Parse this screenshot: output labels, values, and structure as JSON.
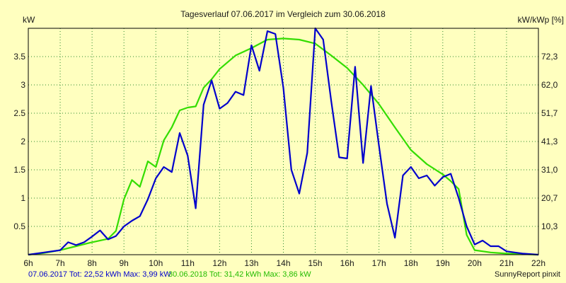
{
  "chart_data": {
    "type": "line",
    "title": "Tagesverlauf 07.06.2017 im Vergleich zum 30.06.2018",
    "ylabel_left": "kW",
    "ylabel_right": "kW/kWp [%]",
    "x_ticks": [
      "6h",
      "7h",
      "8h",
      "9h",
      "10h",
      "11h",
      "12h",
      "13h",
      "14h",
      "15h",
      "16h",
      "17h",
      "18h",
      "19h",
      "20h",
      "21h",
      "22h"
    ],
    "y_left_ticks": [
      "0.5",
      "1",
      "1.5",
      "2",
      "2.5",
      "3",
      "3.5"
    ],
    "y_left_tick_values": [
      0.5,
      1,
      1.5,
      2,
      2.5,
      3,
      3.5
    ],
    "y_right_ticks": [
      "10,3",
      "20,7",
      "31,0",
      "41,3",
      "51,7",
      "62,0",
      "72,3"
    ],
    "xlim": [
      6,
      22
    ],
    "ylim": [
      0,
      4.0
    ],
    "grid": true,
    "series": [
      {
        "name": "07.06.2017",
        "color": "#0000cc",
        "x": [
          6.0,
          6.5,
          7.0,
          7.25,
          7.5,
          7.75,
          8.0,
          8.25,
          8.5,
          8.75,
          9.0,
          9.25,
          9.5,
          9.75,
          10.0,
          10.25,
          10.5,
          10.75,
          11.0,
          11.25,
          11.5,
          11.75,
          12.0,
          12.25,
          12.5,
          12.75,
          13.0,
          13.25,
          13.5,
          13.75,
          14.0,
          14.25,
          14.5,
          14.75,
          15.0,
          15.25,
          15.5,
          15.75,
          16.0,
          16.25,
          16.5,
          16.75,
          17.0,
          17.25,
          17.5,
          17.75,
          18.0,
          18.25,
          18.5,
          18.75,
          19.0,
          19.25,
          19.5,
          19.75,
          20.0,
          20.25,
          20.5,
          20.75,
          21.0,
          21.25,
          21.5,
          22.0
        ],
        "y": [
          0.0,
          0.04,
          0.08,
          0.22,
          0.17,
          0.22,
          0.32,
          0.43,
          0.27,
          0.33,
          0.5,
          0.6,
          0.68,
          0.98,
          1.35,
          1.55,
          1.46,
          2.15,
          1.75,
          0.82,
          2.65,
          3.08,
          2.58,
          2.68,
          2.88,
          2.82,
          3.7,
          3.25,
          3.95,
          3.9,
          2.95,
          1.5,
          1.08,
          1.8,
          4.0,
          3.8,
          2.72,
          1.72,
          1.7,
          3.32,
          1.62,
          2.98,
          1.92,
          0.9,
          0.3,
          1.4,
          1.55,
          1.35,
          1.4,
          1.22,
          1.37,
          1.43,
          1.0,
          0.5,
          0.18,
          0.25,
          0.15,
          0.15,
          0.06,
          0.04,
          0.02,
          0.0
        ]
      },
      {
        "name": "30.06.2018",
        "color": "#33dd00",
        "x": [
          6.0,
          6.5,
          7.0,
          7.5,
          8.0,
          8.5,
          8.75,
          9.0,
          9.25,
          9.5,
          9.75,
          10.0,
          10.25,
          10.5,
          10.75,
          11.0,
          11.25,
          11.5,
          11.75,
          12.0,
          12.5,
          13.0,
          13.5,
          14.0,
          14.5,
          15.0,
          15.5,
          16.0,
          16.5,
          17.0,
          17.5,
          18.0,
          18.5,
          19.0,
          19.25,
          19.5,
          19.75,
          20.0,
          20.25,
          20.5,
          20.75,
          21.0,
          21.5,
          22.0
        ],
        "y": [
          0.0,
          0.03,
          0.08,
          0.15,
          0.22,
          0.28,
          0.42,
          0.98,
          1.32,
          1.2,
          1.65,
          1.55,
          2.02,
          2.25,
          2.55,
          2.6,
          2.62,
          2.95,
          3.1,
          3.28,
          3.52,
          3.65,
          3.8,
          3.82,
          3.8,
          3.73,
          3.52,
          3.3,
          3.0,
          2.66,
          2.25,
          1.85,
          1.6,
          1.42,
          1.3,
          1.16,
          0.35,
          0.08,
          0.06,
          0.04,
          0.03,
          0.02,
          0.01,
          0.0
        ]
      }
    ]
  },
  "footer": {
    "series1_text": "07.06.2017 Tot: 22,52 kWh Max: 3,99 kW",
    "series2_text": "30.06.2018 Tot: 31,42 kWh Max: 3,86 kW",
    "credit": "SunnyReport pinxit"
  }
}
